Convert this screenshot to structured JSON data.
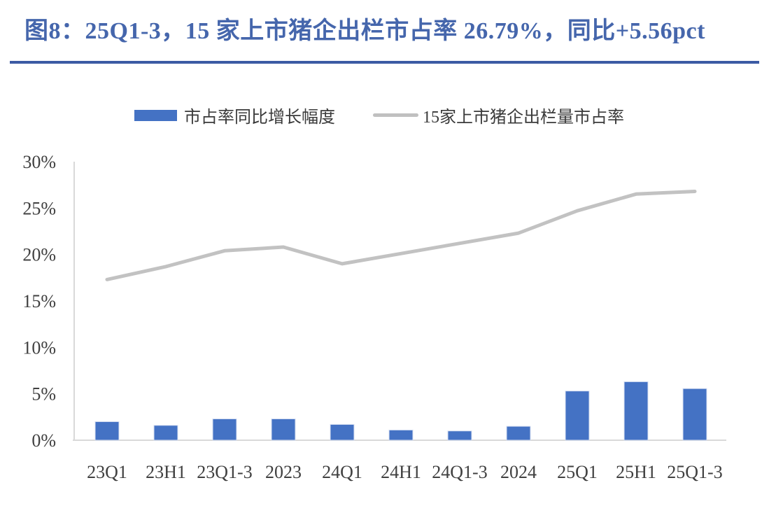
{
  "title": {
    "text": "图8：25Q1-3，15 家上市猪企出栏市占率 26.79%，同比+5.56pct"
  },
  "legend": [
    {
      "label": "市占率同比增长幅度",
      "type": "bar",
      "color": "#4472C4"
    },
    {
      "label": "15家上市猪企出栏量市占率",
      "type": "line",
      "color": "#C0C0C0"
    }
  ],
  "chart_data": {
    "type": "bar+line combo",
    "categories": [
      "23Q1",
      "23H1",
      "23Q1-3",
      "2023",
      "24Q1",
      "24H1",
      "24Q1-3",
      "2024",
      "25Q1",
      "25H1",
      "25Q1-3"
    ],
    "series": [
      {
        "name": "市占率同比增长幅度",
        "type": "bar",
        "color": "#4472C4",
        "unit": "pct",
        "values": [
          2.0,
          1.6,
          2.3,
          2.3,
          1.7,
          1.1,
          1.0,
          1.5,
          5.3,
          6.3,
          5.56
        ]
      },
      {
        "name": "15家上市猪企出栏量市占率",
        "type": "line",
        "color": "#C2C2C2",
        "unit": "%",
        "values": [
          17.3,
          18.7,
          20.4,
          20.8,
          19.0,
          20.1,
          21.2,
          22.3,
          24.7,
          26.5,
          26.79
        ]
      }
    ],
    "y_ticks": [
      "0%",
      "5%",
      "10%",
      "15%",
      "20%",
      "25%",
      "30%"
    ],
    "y_tick_values": [
      0,
      5,
      10,
      15,
      20,
      25,
      30
    ],
    "ylim": [
      0,
      30
    ],
    "xlabel": "",
    "ylabel": "",
    "grid": false,
    "legend_position": "top"
  },
  "colors": {
    "title_text": "#4566AC",
    "title_rule": "#3C5BA4",
    "bar_fill": "#4472C4",
    "line_stroke": "#C2C2C2",
    "axis_line": "#D9D9D9",
    "axis_text": "#404040"
  }
}
